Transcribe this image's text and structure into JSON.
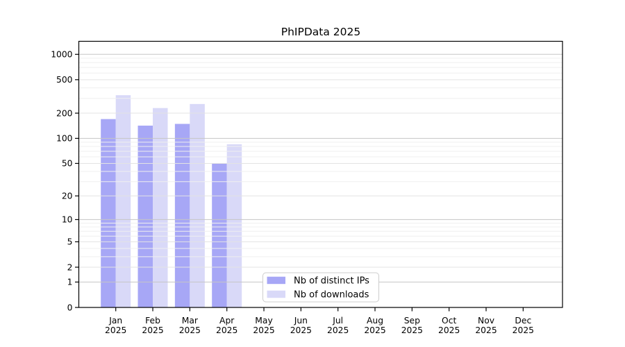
{
  "title": "PhIPData 2025",
  "chart_data": {
    "type": "bar",
    "title": "PhIPData 2025",
    "y_scale": "log1p",
    "categories": [
      "Jan",
      "Feb",
      "Mar",
      "Apr",
      "May",
      "Jun",
      "Jul",
      "Aug",
      "Sep",
      "Oct",
      "Nov",
      "Dec"
    ],
    "x_year": "2025",
    "series": [
      {
        "name": "Nb of distinct IPs",
        "color": "#a7a7f6",
        "values": [
          170,
          142,
          149,
          50,
          null,
          null,
          null,
          null,
          null,
          null,
          null,
          null
        ]
      },
      {
        "name": "Nb of downloads",
        "color": "#d9d9f8",
        "values": [
          327,
          230,
          257,
          85,
          null,
          null,
          null,
          null,
          null,
          null,
          null,
          null
        ]
      }
    ],
    "y_ticks": [
      0,
      1,
      2,
      5,
      10,
      20,
      50,
      100,
      200,
      500,
      1000
    ],
    "y_minor_ticks": [
      3,
      4,
      6,
      7,
      8,
      9,
      30,
      40,
      60,
      70,
      80,
      90,
      300,
      400,
      600,
      700,
      800,
      900
    ],
    "ylim": [
      0,
      1400
    ],
    "grid": "on",
    "legend": {
      "position": "inside-bottom-center",
      "entries": [
        "Nb of distinct IPs",
        "Nb of downloads"
      ]
    }
  },
  "colors": {
    "background": "#ffffff",
    "bar_distinct_ips": "#a7a7f6",
    "bar_downloads": "#d9d9f8",
    "grid_major_pow10": "#c5c5c5",
    "grid_major_other": "#e3e3e3",
    "grid_minor": "#efefef",
    "axis": "#000000",
    "legend_border": "#cccccc"
  }
}
